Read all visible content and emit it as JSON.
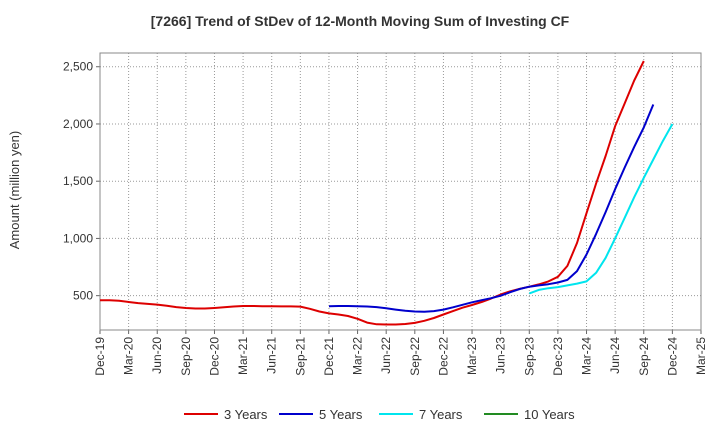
{
  "chart_data": {
    "type": "line",
    "title": "[7266]  Trend of StDev of 12-Month Moving Sum of Investing CF",
    "ylabel": "Amount (million yen)",
    "xlabel": "",
    "x_ticks": [
      "Dec-19",
      "Mar-20",
      "Jun-20",
      "Sep-20",
      "Dec-20",
      "Mar-21",
      "Jun-21",
      "Sep-21",
      "Dec-21",
      "Mar-22",
      "Jun-22",
      "Sep-22",
      "Dec-22",
      "Mar-23",
      "Jun-23",
      "Sep-23",
      "Dec-23",
      "Mar-24",
      "Jun-24",
      "Sep-24",
      "Dec-24",
      "Mar-25"
    ],
    "y_ticks": [
      "500",
      "1,000",
      "1,500",
      "2,000",
      "2,500"
    ],
    "ylim": [
      200,
      2620
    ],
    "grid": true,
    "legend_position": "bottom",
    "series": [
      {
        "name": "3 Years",
        "color": "#dd0000",
        "x_start": "Dec-19",
        "values": [
          460,
          460,
          455,
          445,
          435,
          428,
          422,
          412,
          400,
          392,
          388,
          388,
          392,
          398,
          405,
          410,
          410,
          408,
          407,
          406,
          406,
          404,
          385,
          362,
          345,
          335,
          322,
          298,
          265,
          250,
          248,
          248,
          252,
          262,
          280,
          305,
          335,
          365,
          395,
          418,
          445,
          475,
          510,
          538,
          560,
          578,
          598,
          625,
          665,
          760,
          960,
          1220,
          1480,
          1720,
          1980,
          2180,
          2380,
          2550
        ]
      },
      {
        "name": "5 Years",
        "color": "#0000cc",
        "x_start": "Dec-21",
        "values": [
          408,
          410,
          410,
          408,
          405,
          400,
          390,
          378,
          368,
          362,
          360,
          365,
          378,
          398,
          420,
          442,
          460,
          478,
          500,
          530,
          558,
          578,
          590,
          600,
          615,
          638,
          715,
          860,
          1040,
          1230,
          1430,
          1620,
          1800,
          1970,
          2170
        ]
      },
      {
        "name": "7 Years",
        "color": "#00e5ee",
        "x_start": "Sep-23",
        "values": [
          520,
          550,
          565,
          575,
          590,
          605,
          625,
          700,
          830,
          1000,
          1180,
          1360,
          1530,
          1690,
          1850,
          2000
        ]
      },
      {
        "name": "10 Years",
        "color": "#228b22",
        "x_start": "",
        "values": []
      }
    ]
  }
}
